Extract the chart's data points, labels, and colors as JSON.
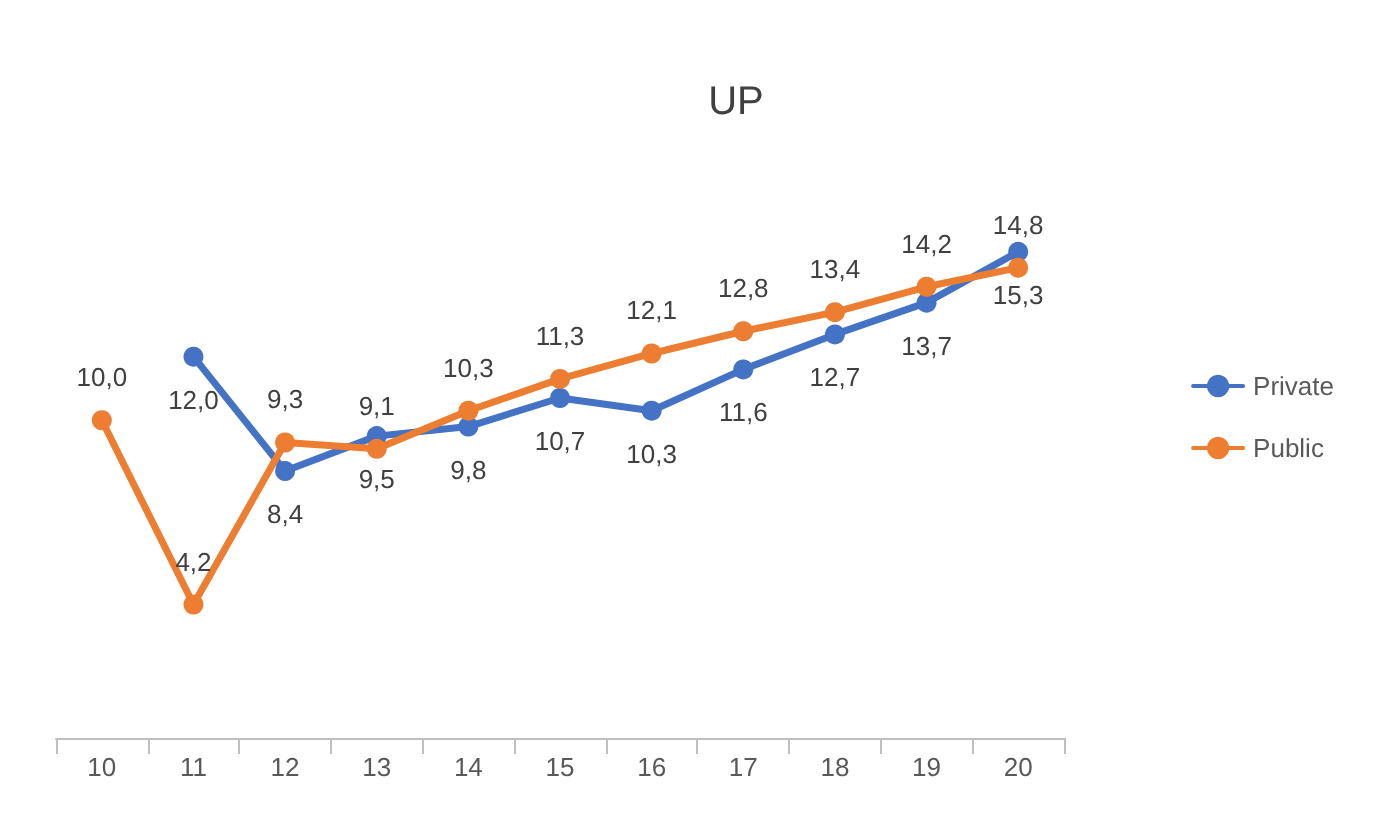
{
  "chart_data": {
    "type": "line",
    "title": "UP",
    "categories": [
      "10",
      "11",
      "12",
      "13",
      "14",
      "15",
      "16",
      "17",
      "18",
      "19",
      "20"
    ],
    "series": [
      {
        "name": "Private",
        "color": "#4472c4",
        "values": [
          null,
          12.0,
          8.4,
          9.5,
          9.8,
          10.7,
          10.3,
          11.6,
          12.7,
          13.7,
          15.3
        ],
        "value_labels": [
          null,
          "12,0",
          "8,4",
          "9,5",
          "9,8",
          "10,7",
          "10,3",
          "11,6",
          "12,7",
          "13,7",
          "15,3"
        ]
      },
      {
        "name": "Public",
        "color": "#ed7d31",
        "values": [
          10.0,
          4.2,
          9.3,
          9.1,
          10.3,
          11.3,
          12.1,
          12.8,
          13.4,
          14.2,
          14.8
        ],
        "value_labels": [
          "10,0",
          "4,2",
          "9,3",
          "9,1",
          "10,3",
          "11,3",
          "12,1",
          "12,8",
          "13,4",
          "14,2",
          "14,8"
        ]
      }
    ],
    "grid": false,
    "legend": "right",
    "marker": "circle",
    "line_style": "solid"
  }
}
